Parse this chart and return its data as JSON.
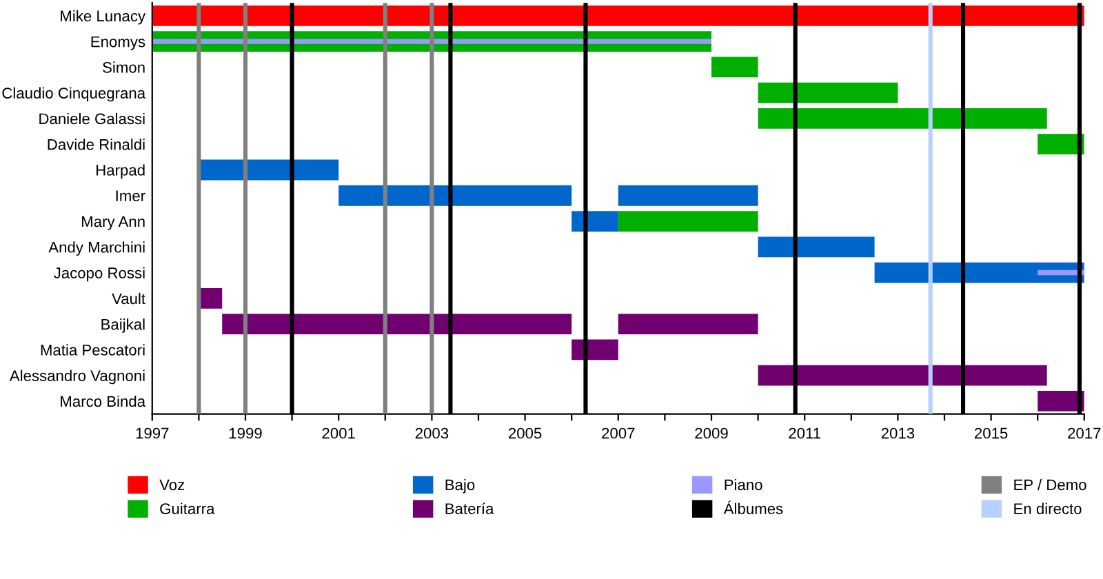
{
  "chart_data": {
    "type": "bar",
    "orientation": "horizontal",
    "categories": [
      "Mike Lunacy",
      "Enomys",
      "Simon",
      "Claudio Cinquegrana",
      "Daniele Galassi",
      "Davide Rinaldi",
      "Harpad",
      "Imer",
      "Mary Ann",
      "Andy Marchini",
      "Jacopo Rossi",
      "Vault",
      "Baijkal",
      "Matia Pescatori",
      "Alessandro Vagnoni",
      "Marco Binda"
    ],
    "series": [
      {
        "name": "Voz",
        "color": "#ff0000",
        "base": [
          1997,
          null,
          null,
          null,
          null,
          null,
          null,
          null,
          null,
          null,
          null,
          null,
          null,
          null,
          null,
          null
        ],
        "values": [
          20,
          null,
          null,
          null,
          null,
          null,
          null,
          null,
          null,
          null,
          null,
          null,
          null,
          null,
          null,
          null
        ]
      },
      {
        "name": "Guitarra",
        "color": "#00b000",
        "base": [
          null,
          1997,
          2009,
          2010,
          2010,
          2016,
          null,
          null,
          2007,
          null,
          null,
          null,
          null,
          null,
          null,
          null
        ],
        "values": [
          null,
          12,
          1,
          3,
          6.2,
          1,
          null,
          null,
          3,
          null,
          null,
          null,
          null,
          null,
          null,
          null
        ]
      },
      {
        "name": "Bajo",
        "color": "#0066cc",
        "base": [
          null,
          null,
          null,
          null,
          null,
          null,
          1998,
          2001,
          2006,
          2010,
          2012.5,
          null,
          null,
          null,
          null,
          null
        ],
        "values": [
          null,
          null,
          null,
          null,
          null,
          null,
          3,
          5,
          1,
          2.5,
          4.5,
          null,
          null,
          null,
          null,
          null
        ]
      },
      {
        "color": "#0066cc",
        "base": [
          null,
          null,
          null,
          null,
          null,
          null,
          null,
          2007,
          null,
          null,
          null,
          null,
          null,
          null,
          null,
          null
        ],
        "values": [
          null,
          null,
          null,
          null,
          null,
          null,
          null,
          3,
          null,
          null,
          null,
          null,
          null,
          null,
          null,
          null
        ]
      },
      {
        "name": "Batería",
        "color": "#700070",
        "base": [
          null,
          null,
          null,
          null,
          null,
          null,
          null,
          null,
          null,
          null,
          null,
          1998,
          1998.5,
          2006,
          2010,
          2016
        ],
        "values": [
          null,
          null,
          null,
          null,
          null,
          null,
          null,
          null,
          null,
          null,
          null,
          0.5,
          7.5,
          1,
          6.2,
          1
        ]
      },
      {
        "color": "#700070",
        "base": [
          null,
          null,
          null,
          null,
          null,
          null,
          null,
          null,
          null,
          null,
          null,
          null,
          2007,
          null,
          null,
          null
        ],
        "values": [
          null,
          null,
          null,
          null,
          null,
          null,
          null,
          null,
          null,
          null,
          null,
          null,
          3,
          null,
          null,
          null
        ]
      },
      {
        "name": "Piano",
        "color": "#9999ff",
        "base": [
          null,
          1997,
          null,
          null,
          null,
          null,
          null,
          null,
          null,
          null,
          2016,
          null,
          null,
          null,
          null,
          null
        ],
        "values": [
          null,
          12,
          null,
          null,
          null,
          null,
          null,
          null,
          null,
          null,
          1,
          null,
          null,
          null,
          null,
          null
        ]
      }
    ],
    "xlim": [
      1997,
      2017
    ],
    "xticks": [
      1997,
      {
        "value": 1998,
        "label": null
      },
      1999,
      {
        "value": 2000,
        "label": null
      },
      2001,
      {
        "value": 2002,
        "label": null
      },
      2003,
      {
        "value": 2004,
        "label": null
      },
      2005,
      {
        "value": 2006,
        "label": null
      },
      2007,
      {
        "value": 2008,
        "label": null
      },
      2009,
      {
        "value": 2010,
        "label": null
      },
      2011,
      {
        "value": 2012,
        "label": null
      },
      2013,
      {
        "value": 2014,
        "label": null
      },
      2015,
      {
        "value": 2016,
        "label": null
      },
      2017
    ],
    "ref_lines": [
      {
        "axis": "x",
        "value": 2000,
        "label": "Álbumes",
        "color": "#000000"
      },
      {
        "axis": "x",
        "value": 2003.4,
        "color": "#000000"
      },
      {
        "axis": "x",
        "value": 2006.3,
        "color": "#000000"
      },
      {
        "axis": "x",
        "value": 2010.8,
        "color": "#000000"
      },
      {
        "axis": "x",
        "value": 2014.4,
        "color": "#000000"
      },
      {
        "axis": "x",
        "value": 2016.9,
        "color": "#000000"
      },
      {
        "axis": "x",
        "value": 1998,
        "label": "EP / Demo",
        "color": "#808080"
      },
      {
        "axis": "x",
        "value": 1999,
        "color": "#808080"
      },
      {
        "axis": "x",
        "value": 2002,
        "color": "#808080"
      },
      {
        "axis": "x",
        "value": 2003,
        "color": "#808080"
      },
      {
        "axis": "x",
        "value": 2013.7,
        "label": "En directo",
        "color": "#b8cfff"
      }
    ],
    "grid": false,
    "legend": "bottom"
  }
}
